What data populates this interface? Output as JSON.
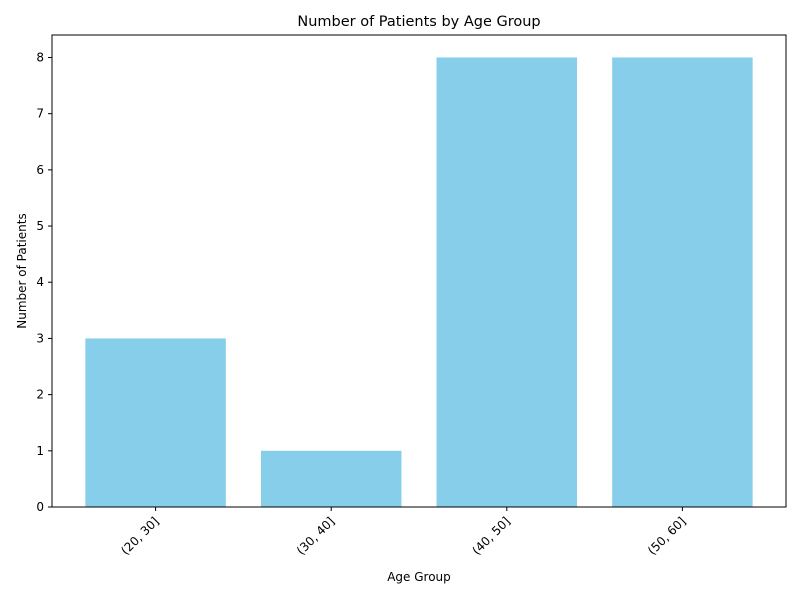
{
  "chart_data": {
    "type": "bar",
    "title": "Number of Patients by Age Group",
    "xlabel": "Age Group",
    "ylabel": "Number of Patients",
    "categories": [
      "(20, 30]",
      "(30, 40]",
      "(40, 50]",
      "(50, 60]"
    ],
    "values": [
      3,
      1,
      8,
      8
    ],
    "ylim": [
      0,
      8.4
    ],
    "yticks": [
      0,
      1,
      2,
      3,
      4,
      5,
      6,
      7,
      8
    ],
    "grid": false,
    "legend": "none",
    "bar_color": "#87CEEB",
    "xtick_rotation": 45
  }
}
